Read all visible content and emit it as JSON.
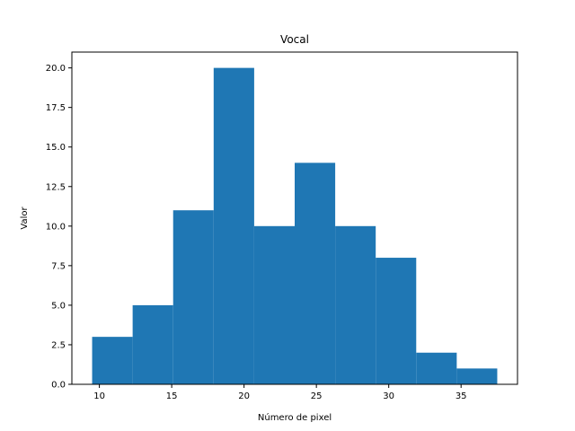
{
  "chart_data": {
    "type": "bar",
    "title": "Vocal",
    "xlabel": "Número de pixel",
    "ylabel": "Valor",
    "xlim": [
      8.1,
      38.9
    ],
    "ylim": [
      0,
      21
    ],
    "bins": [
      {
        "x0": 9.5,
        "x1": 12.3,
        "value": 3
      },
      {
        "x0": 12.3,
        "x1": 15.1,
        "value": 5
      },
      {
        "x0": 15.1,
        "x1": 17.9,
        "value": 11
      },
      {
        "x0": 17.9,
        "x1": 20.7,
        "value": 20
      },
      {
        "x0": 20.7,
        "x1": 23.5,
        "value": 10
      },
      {
        "x0": 23.5,
        "x1": 26.3,
        "value": 14
      },
      {
        "x0": 26.3,
        "x1": 29.1,
        "value": 10
      },
      {
        "x0": 29.1,
        "x1": 31.9,
        "value": 8
      },
      {
        "x0": 31.9,
        "x1": 34.7,
        "value": 2
      },
      {
        "x0": 34.7,
        "x1": 37.5,
        "value": 1
      }
    ],
    "xticks": [
      10,
      15,
      20,
      25,
      30,
      35
    ],
    "xtick_labels": [
      "10",
      "15",
      "20",
      "25",
      "30",
      "35"
    ],
    "yticks": [
      0,
      2.5,
      5,
      7.5,
      10,
      12.5,
      15,
      17.5,
      20
    ],
    "ytick_labels": [
      "0.0",
      "2.5",
      "5.0",
      "7.5",
      "10.0",
      "12.5",
      "15.0",
      "17.5",
      "20.0"
    ],
    "bar_color": "#1f77b4",
    "grid": false,
    "legend": false
  }
}
